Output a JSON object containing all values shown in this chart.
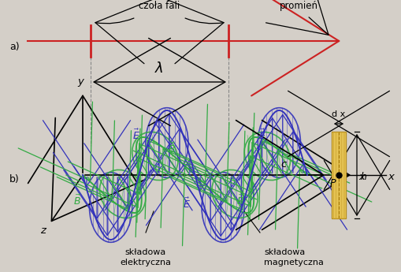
{
  "bg_color": "#d4cfc8",
  "wave_color_E": "#3333bb",
  "wave_color_B": "#33aa44",
  "axis_color": "#000000",
  "ray_color": "#cc2222",
  "wavelength_label": "λ",
  "label_czola": "czoła fali",
  "label_promien": "promień",
  "label_skladowa_e": "składowa\nelektryczna",
  "label_skladowa_m": "składowa\nmagnetyczna",
  "label_c": "c",
  "label_x": "x",
  "label_y": "y",
  "label_z": "z",
  "label_P": "P",
  "label_dx": "d x",
  "label_h": "h",
  "label_a": "a)",
  "label_b": "b)",
  "fig_w": 5.1,
  "fig_h": 3.45,
  "dpi": 100
}
